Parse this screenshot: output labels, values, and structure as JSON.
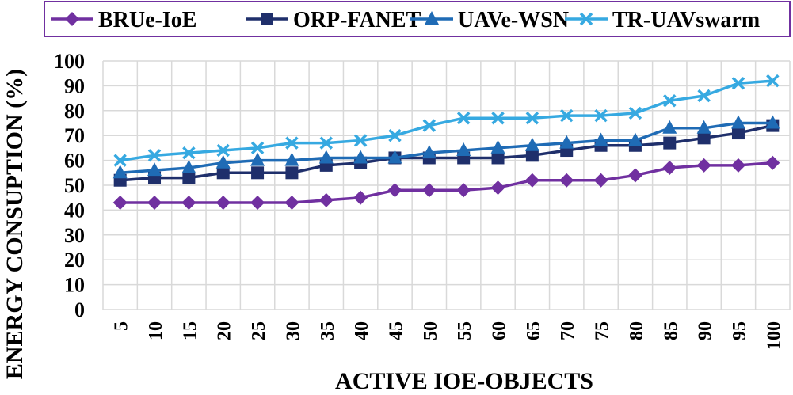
{
  "chart_data": {
    "type": "line",
    "title": "",
    "xlabel": "ACTIVE IOE-OBJECTS",
    "ylabel": "ENERGY CONSUPTION (%)",
    "ylim": [
      0,
      100
    ],
    "ytick_step": 10,
    "grid": true,
    "legend_position": "top",
    "categories": [
      "5",
      "10",
      "15",
      "20",
      "25",
      "30",
      "35",
      "40",
      "45",
      "50",
      "55",
      "60",
      "65",
      "70",
      "75",
      "80",
      "85",
      "90",
      "95",
      "100"
    ],
    "series": [
      {
        "name": "BRUe-IoE",
        "color": "#7030a0",
        "marker": "diamond",
        "values": [
          43,
          43,
          43,
          43,
          43,
          43,
          44,
          45,
          48,
          48,
          48,
          49,
          52,
          52,
          52,
          54,
          57,
          58,
          58,
          59
        ]
      },
      {
        "name": "ORP-FANET",
        "color": "#1f2f6b",
        "marker": "square",
        "values": [
          52,
          53,
          53,
          55,
          55,
          55,
          58,
          59,
          61,
          61,
          61,
          61,
          62,
          64,
          66,
          66,
          67,
          69,
          71,
          74
        ]
      },
      {
        "name": "UAVe-WSN",
        "color": "#1f6bb5",
        "marker": "triangle",
        "values": [
          55,
          56,
          57,
          59,
          60,
          60,
          61,
          61,
          61,
          63,
          64,
          65,
          66,
          67,
          68,
          68,
          73,
          73,
          75,
          75
        ]
      },
      {
        "name": "TR-UAVswarm",
        "color": "#36a9e1",
        "marker": "x",
        "values": [
          60,
          62,
          63,
          64,
          65,
          67,
          67,
          68,
          70,
          74,
          77,
          77,
          77,
          78,
          78,
          79,
          84,
          86,
          91,
          92
        ]
      }
    ]
  }
}
